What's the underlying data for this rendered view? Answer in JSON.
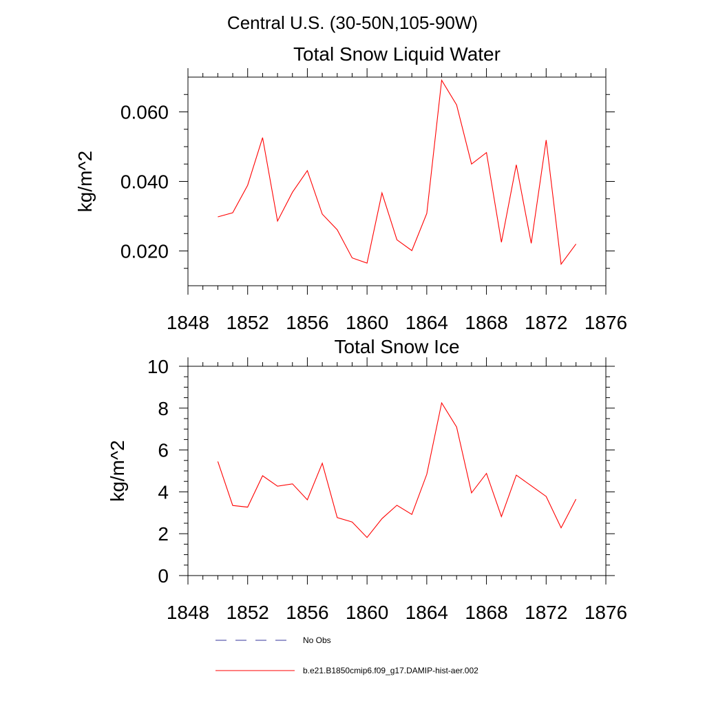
{
  "figure": {
    "suptitle": "Central U.S. (30-50N,105-90W)"
  },
  "legend": {
    "placement": "bottom-left",
    "entries": [
      {
        "label": "No Obs",
        "color": "#33339a",
        "style": "dashed"
      },
      {
        "label": "b.e21.B1850cmip6.f09_g17.DAMIP-hist-aer.002",
        "color": "#ff0000",
        "style": "solid"
      }
    ]
  },
  "chart_data": [
    {
      "type": "line",
      "title": "Total Snow Liquid Water",
      "xlabel": "",
      "ylabel": "kg/m^2",
      "xlim": [
        1848,
        1876
      ],
      "ylim": [
        0.01,
        0.07
      ],
      "xticks": [
        1848,
        1852,
        1856,
        1860,
        1864,
        1868,
        1872,
        1876
      ],
      "xtick_labels": [
        "1848",
        "1852",
        "1856",
        "1860",
        "1864",
        "1868",
        "1872",
        "1876"
      ],
      "yticks": [
        0.02,
        0.04,
        0.06
      ],
      "ytick_labels": [
        "0.020",
        "0.040",
        "0.060"
      ],
      "grid": false,
      "x": [
        1850,
        1851,
        1852,
        1853,
        1854,
        1855,
        1856,
        1857,
        1858,
        1859,
        1860,
        1861,
        1862,
        1863,
        1864,
        1865,
        1866,
        1867,
        1868,
        1869,
        1870,
        1871,
        1872,
        1873,
        1874
      ],
      "series": [
        {
          "name": "b.e21.B1850cmip6.f09_g17.DAMIP-hist-aer.002",
          "color": "#ff0000",
          "values": [
            0.0298,
            0.031,
            0.0389,
            0.0526,
            0.0286,
            0.0369,
            0.0431,
            0.0306,
            0.0261,
            0.018,
            0.0165,
            0.0367,
            0.0232,
            0.0201,
            0.0308,
            0.0691,
            0.062,
            0.045,
            0.0483,
            0.0225,
            0.0448,
            0.0222,
            0.0519,
            0.0162,
            0.022
          ]
        }
      ]
    },
    {
      "type": "line",
      "title": "Total Snow Ice",
      "xlabel": "",
      "ylabel": "kg/m^2",
      "xlim": [
        1848,
        1876
      ],
      "ylim": [
        0,
        10
      ],
      "xticks": [
        1848,
        1852,
        1856,
        1860,
        1864,
        1868,
        1872,
        1876
      ],
      "xtick_labels": [
        "1848",
        "1852",
        "1856",
        "1860",
        "1864",
        "1868",
        "1872",
        "1876"
      ],
      "yticks": [
        0,
        2,
        4,
        6,
        8,
        10
      ],
      "ytick_labels": [
        "0",
        "2",
        "4",
        "6",
        "8",
        "10"
      ],
      "grid": false,
      "x": [
        1850,
        1851,
        1852,
        1853,
        1854,
        1855,
        1856,
        1857,
        1858,
        1859,
        1860,
        1861,
        1862,
        1863,
        1864,
        1865,
        1866,
        1867,
        1868,
        1869,
        1870,
        1871,
        1872,
        1873,
        1874
      ],
      "series": [
        {
          "name": "b.e21.B1850cmip6.f09_g17.DAMIP-hist-aer.002",
          "color": "#ff0000",
          "values": [
            5.45,
            3.35,
            3.27,
            4.77,
            4.27,
            4.38,
            3.62,
            5.37,
            2.77,
            2.56,
            1.82,
            2.72,
            3.36,
            2.92,
            4.84,
            8.25,
            7.1,
            3.95,
            4.88,
            2.82,
            4.8,
            4.29,
            3.78,
            2.28,
            3.65
          ]
        }
      ]
    }
  ]
}
